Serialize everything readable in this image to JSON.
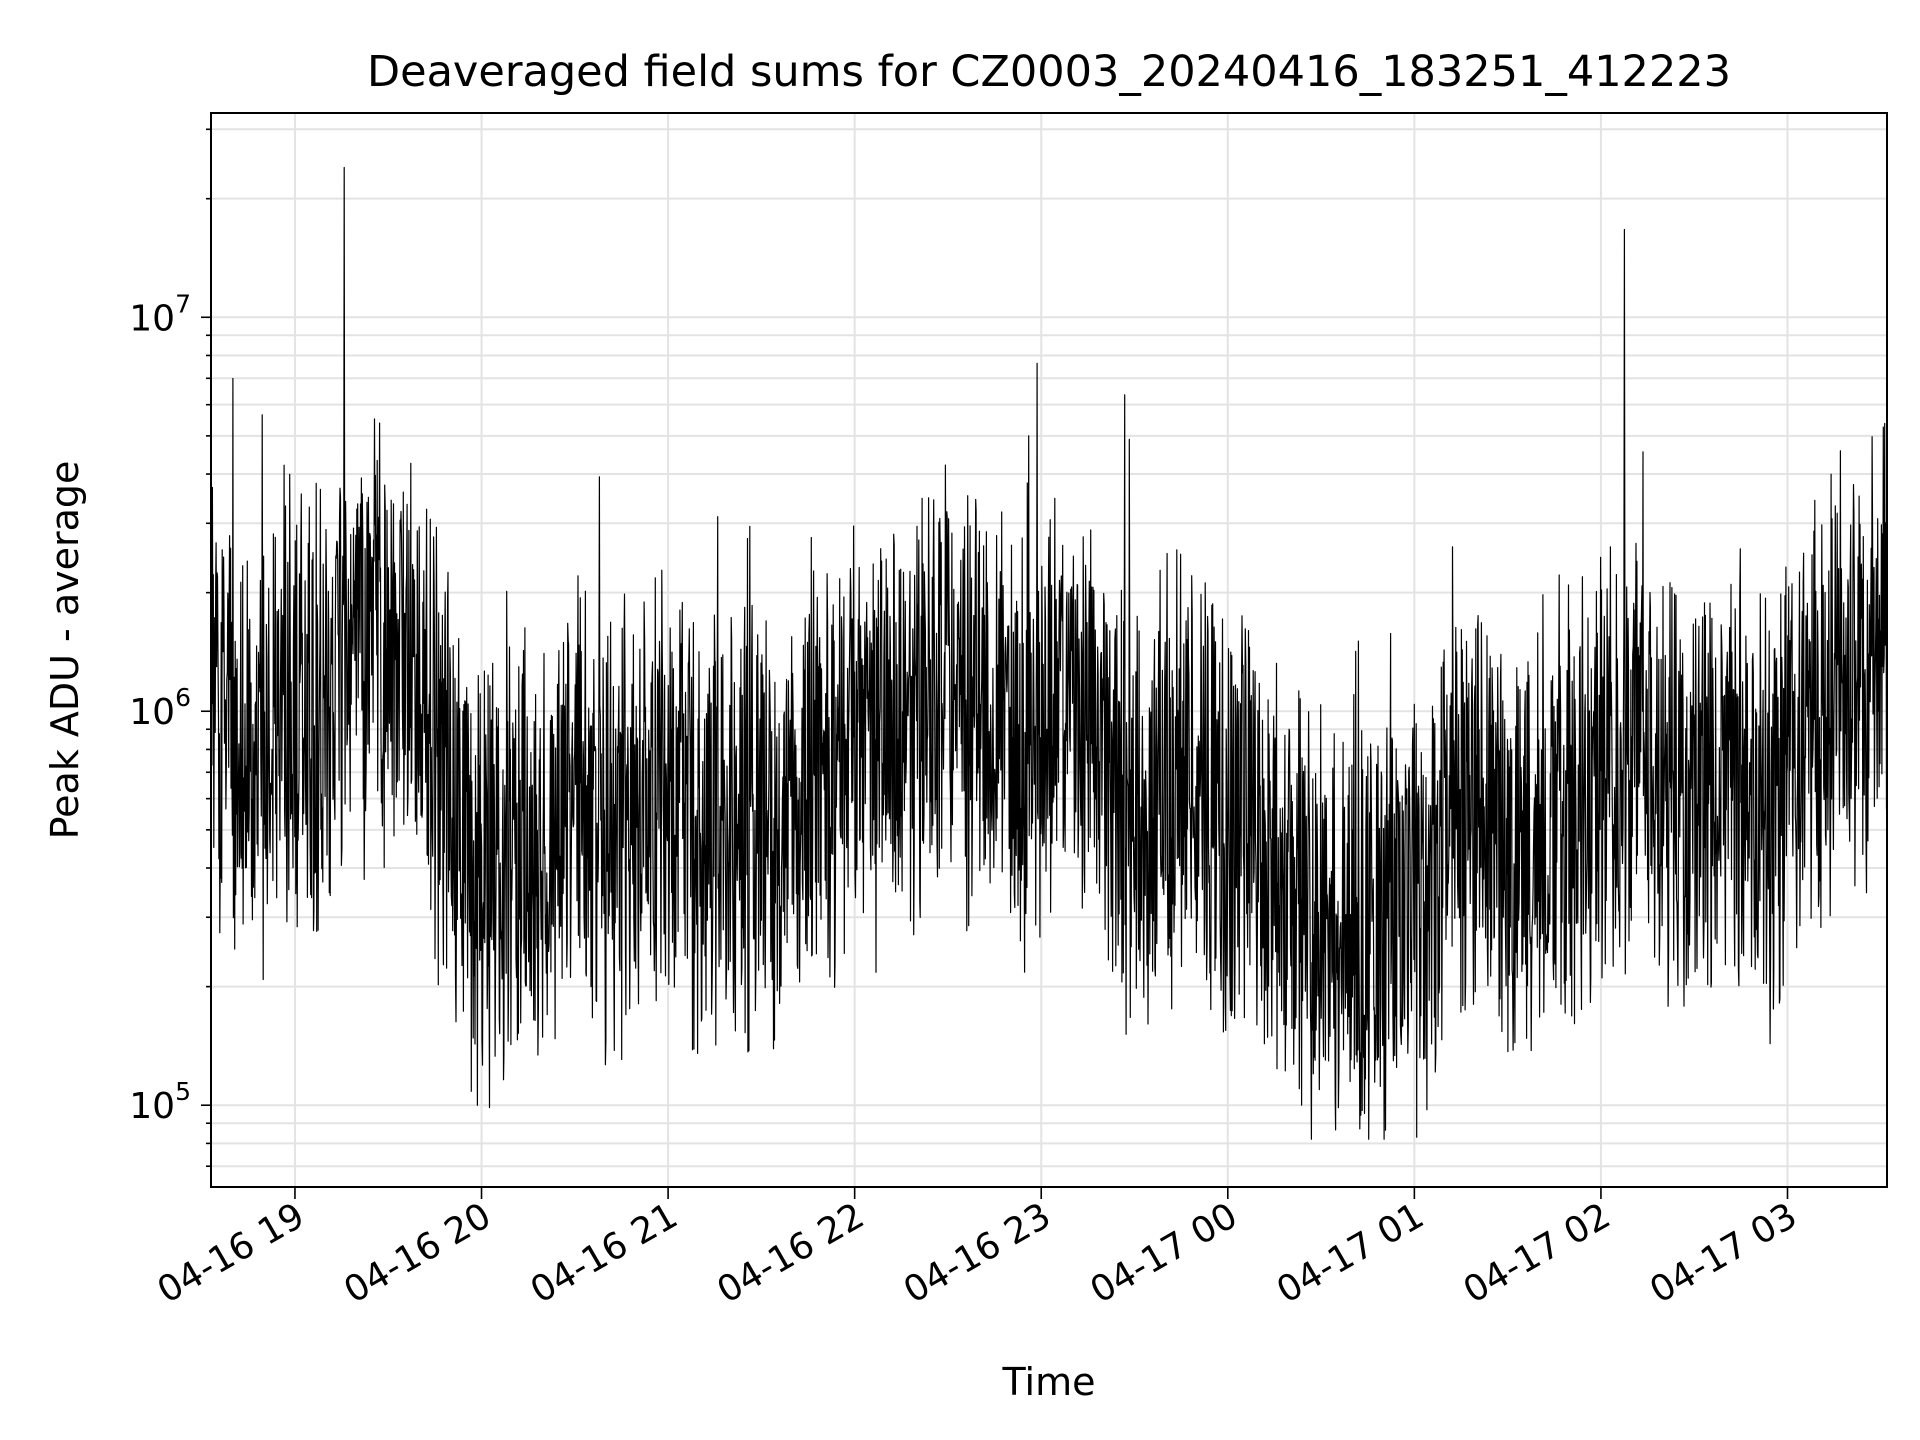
{
  "chart_data": {
    "type": "line",
    "title": "Deaveraged field sums for CZ0003_20240416_183251_412223",
    "xlabel": "Time",
    "ylabel": "Peak ADU - average",
    "y_scale": "log",
    "ylim": [
      62000,
      33000000
    ],
    "xlim": [
      "2024-04-16 18:33",
      "2024-04-17 03:32"
    ],
    "x_ticks": [
      "04-16 19",
      "04-16 20",
      "04-16 21",
      "04-16 22",
      "04-16 23",
      "04-17 00",
      "04-17 01",
      "04-17 02",
      "04-17 03"
    ],
    "y_ticks": [
      {
        "value": 100000,
        "base": "10",
        "exp": "5"
      },
      {
        "value": 1000000,
        "base": "10",
        "exp": "6"
      },
      {
        "value": 10000000,
        "base": "10",
        "exp": "7"
      }
    ],
    "grid": true,
    "line_color": "#000000",
    "series": [
      {
        "x": [
          "2024-04-16 18:33",
          "2024-04-16 18:40",
          "2024-04-16 18:46",
          "2024-04-16 18:53",
          "2024-04-16 19:00",
          "2024-04-16 19:07",
          "2024-04-16 19:13",
          "2024-04-16 19:20",
          "2024-04-16 19:27",
          "2024-04-16 19:33",
          "2024-04-16 19:40",
          "2024-04-16 19:47",
          "2024-04-16 19:53",
          "2024-04-16 20:00",
          "2024-04-16 20:07",
          "2024-04-16 20:13",
          "2024-04-16 20:20",
          "2024-04-16 20:27",
          "2024-04-16 20:33",
          "2024-04-16 20:40",
          "2024-04-16 20:47",
          "2024-04-16 20:53",
          "2024-04-16 21:00",
          "2024-04-16 21:07",
          "2024-04-16 21:13",
          "2024-04-16 21:20",
          "2024-04-16 21:27",
          "2024-04-16 21:33",
          "2024-04-16 21:40",
          "2024-04-16 21:47",
          "2024-04-16 21:53",
          "2024-04-16 22:00",
          "2024-04-16 22:07",
          "2024-04-16 22:13",
          "2024-04-16 22:20",
          "2024-04-16 22:27",
          "2024-04-16 22:33",
          "2024-04-16 22:40",
          "2024-04-16 22:47",
          "2024-04-16 22:53",
          "2024-04-16 23:00",
          "2024-04-16 23:07",
          "2024-04-16 23:13",
          "2024-04-16 23:20",
          "2024-04-16 23:27",
          "2024-04-16 23:33",
          "2024-04-16 23:40",
          "2024-04-16 23:47",
          "2024-04-16 23:53",
          "2024-04-17 00:00",
          "2024-04-17 00:07",
          "2024-04-17 00:13",
          "2024-04-17 00:20",
          "2024-04-17 00:27",
          "2024-04-17 00:33",
          "2024-04-17 00:40",
          "2024-04-17 00:47",
          "2024-04-17 00:53",
          "2024-04-17 01:00",
          "2024-04-17 01:07",
          "2024-04-17 01:13",
          "2024-04-17 01:20",
          "2024-04-17 01:27",
          "2024-04-17 01:33",
          "2024-04-17 01:40",
          "2024-04-17 01:47",
          "2024-04-17 01:53",
          "2024-04-17 02:00",
          "2024-04-17 02:07",
          "2024-04-17 02:13",
          "2024-04-17 02:20",
          "2024-04-17 02:27",
          "2024-04-17 02:33",
          "2024-04-17 02:40",
          "2024-04-17 02:47",
          "2024-04-17 02:53",
          "2024-04-17 03:00",
          "2024-04-17 03:07",
          "2024-04-17 03:13",
          "2024-04-17 03:20",
          "2024-04-17 03:27",
          "2024-04-17 03:32"
        ],
        "y": [
          1200000,
          800000,
          700000,
          900000,
          1100000,
          950000,
          1200000,
          1400000,
          1600000,
          1500000,
          1300000,
          700000,
          450000,
          400000,
          380000,
          500000,
          450000,
          550000,
          600000,
          520000,
          480000,
          700000,
          650000,
          550000,
          450000,
          500000,
          550000,
          480000,
          600000,
          700000,
          650000,
          800000,
          900000,
          1000000,
          950000,
          1000000,
          1100000,
          1000000,
          900000,
          800000,
          900000,
          1100000,
          1000000,
          800000,
          600000,
          500000,
          600000,
          700000,
          650000,
          500000,
          550000,
          400000,
          350000,
          300000,
          280000,
          300000,
          280000,
          300000,
          320000,
          400000,
          600000,
          550000,
          450000,
          400000,
          500000,
          600000,
          550000,
          700000,
          800000,
          750000,
          650000,
          550000,
          600000,
          700000,
          650000,
          500000,
          700000,
          900000,
          1000000,
          1100000,
          1300000,
          1800000
        ]
      }
    ]
  }
}
